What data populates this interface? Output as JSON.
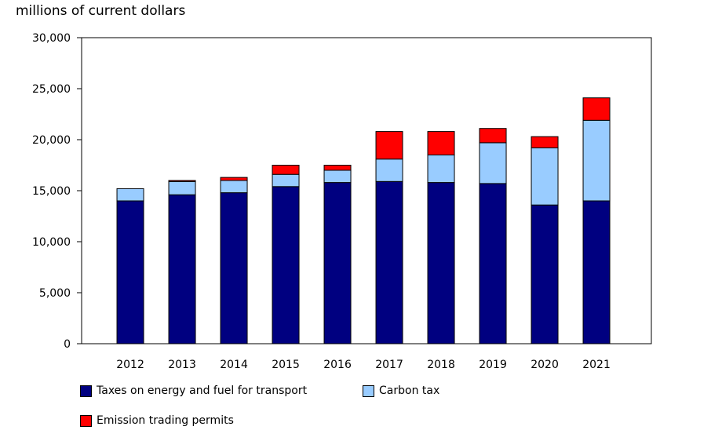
{
  "chart_data": {
    "type": "bar",
    "stacked": true,
    "ylabel": "millions of current dollars",
    "ylim": [
      0,
      30000
    ],
    "yticks": [
      0,
      5000,
      10000,
      15000,
      20000,
      25000,
      30000
    ],
    "ytick_labels": [
      "0",
      "5,000",
      "10,000",
      "15,000",
      "20,000",
      "25,000",
      "30,000"
    ],
    "categories": [
      "2012",
      "2013",
      "2014",
      "2015",
      "2016",
      "2017",
      "2018",
      "2019",
      "2020",
      "2021"
    ],
    "series": [
      {
        "name": "Taxes on energy and fuel for transport",
        "color": "#000080",
        "values": [
          14000,
          14600,
          14800,
          15400,
          15800,
          15900,
          15800,
          15700,
          13600,
          14000
        ]
      },
      {
        "name": "Carbon tax",
        "color": "#99ccff",
        "values": [
          1200,
          1300,
          1200,
          1200,
          1200,
          2200,
          2700,
          4000,
          5600,
          7900
        ]
      },
      {
        "name": "Emission trading permits",
        "color": "#ff0000",
        "values": [
          0,
          100,
          300,
          900,
          500,
          2700,
          2300,
          1400,
          1100,
          2200
        ]
      }
    ],
    "legend_position": "bottom"
  }
}
